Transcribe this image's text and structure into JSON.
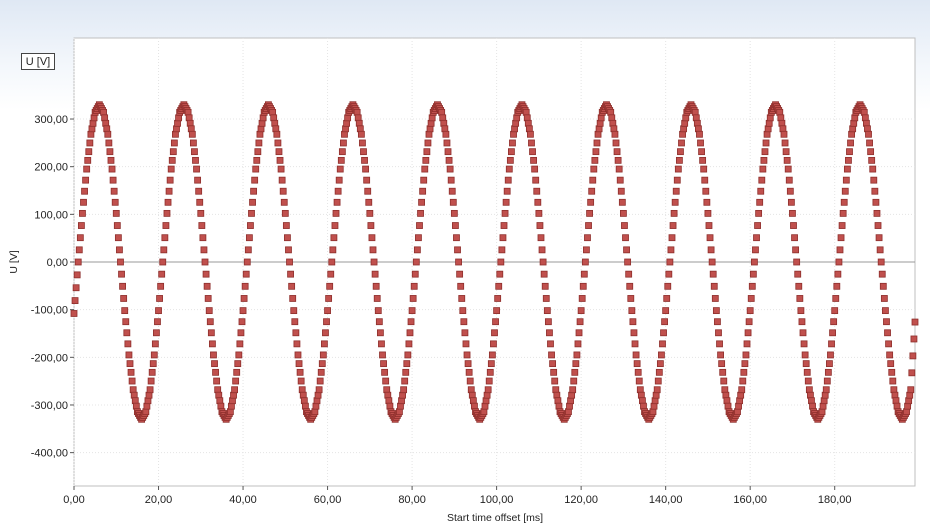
{
  "chart_data": {
    "type": "scatter",
    "xlabel": "Start time offset [ms]",
    "ylabel": "U [V]",
    "legend_label": "U [V]",
    "xlim": [
      0,
      199
    ],
    "ylim": [
      -470,
      470
    ],
    "x_ticks": [
      "0,00",
      "20,00",
      "40,00",
      "60,00",
      "80,00",
      "100,00",
      "120,00",
      "140,00",
      "160,00",
      "180,00"
    ],
    "y_ticks": [
      "-400,00",
      "-300,00",
      "-200,00",
      "-100,00",
      "0,00",
      "100,00",
      "200,00",
      "300,00"
    ],
    "grid": true,
    "marker_color": "#c0504d",
    "marker_edge_color": "#8e2f2c",
    "series": [
      {
        "marker": "square",
        "points": [
          [
            0.0,
            -108
          ],
          [
            1.0,
            0
          ],
          [
            2.0,
            102
          ],
          [
            3.0,
            195
          ],
          [
            4.0,
            268
          ],
          [
            5.0,
            314
          ],
          [
            6.0,
            330
          ],
          [
            7.0,
            314
          ],
          [
            8.0,
            268
          ],
          [
            9.0,
            195
          ],
          [
            10.0,
            102
          ],
          [
            11.0,
            0
          ],
          [
            12.0,
            -102
          ],
          [
            13.0,
            -195
          ],
          [
            14.0,
            -268
          ],
          [
            15.0,
            -314
          ],
          [
            16.0,
            -330
          ],
          [
            17.0,
            -314
          ],
          [
            18.0,
            -268
          ],
          [
            19.0,
            -195
          ],
          [
            20.0,
            -102
          ],
          [
            21.0,
            0
          ],
          [
            22.0,
            102
          ],
          [
            23.0,
            195
          ],
          [
            24.0,
            268
          ],
          [
            25.0,
            314
          ],
          [
            26.0,
            330
          ],
          [
            27.0,
            314
          ],
          [
            28.0,
            268
          ],
          [
            29.0,
            195
          ],
          [
            30.0,
            102
          ],
          [
            31.0,
            0
          ],
          [
            32.0,
            -102
          ],
          [
            33.0,
            -195
          ],
          [
            34.0,
            -268
          ],
          [
            35.0,
            -314
          ],
          [
            36.0,
            -330
          ],
          [
            37.0,
            -314
          ],
          [
            38.0,
            -268
          ],
          [
            39.0,
            -195
          ],
          [
            40.0,
            -102
          ],
          [
            41.0,
            0
          ],
          [
            42.0,
            102
          ],
          [
            43.0,
            195
          ],
          [
            44.0,
            268
          ],
          [
            45.0,
            314
          ],
          [
            46.0,
            330
          ],
          [
            47.0,
            314
          ],
          [
            48.0,
            268
          ],
          [
            49.0,
            195
          ],
          [
            50.0,
            102
          ],
          [
            51.0,
            0
          ],
          [
            52.0,
            -102
          ],
          [
            53.0,
            -195
          ],
          [
            54.0,
            -268
          ],
          [
            55.0,
            -314
          ],
          [
            56.0,
            -330
          ],
          [
            57.0,
            -314
          ],
          [
            58.0,
            -268
          ],
          [
            59.0,
            -195
          ],
          [
            60.0,
            -102
          ],
          [
            61.0,
            0
          ],
          [
            62.0,
            102
          ],
          [
            63.0,
            195
          ],
          [
            64.0,
            268
          ],
          [
            65.0,
            314
          ],
          [
            66.0,
            330
          ],
          [
            67.0,
            314
          ],
          [
            68.0,
            268
          ],
          [
            69.0,
            195
          ],
          [
            70.0,
            102
          ],
          [
            71.0,
            0
          ],
          [
            72.0,
            -102
          ],
          [
            73.0,
            -195
          ],
          [
            74.0,
            -268
          ],
          [
            75.0,
            -314
          ],
          [
            76.0,
            -330
          ],
          [
            77.0,
            -314
          ],
          [
            78.0,
            -268
          ],
          [
            79.0,
            -195
          ],
          [
            80.0,
            -102
          ],
          [
            81.0,
            0
          ],
          [
            82.0,
            102
          ],
          [
            83.0,
            195
          ],
          [
            84.0,
            268
          ],
          [
            85.0,
            314
          ],
          [
            86.0,
            330
          ],
          [
            87.0,
            314
          ],
          [
            88.0,
            268
          ],
          [
            89.0,
            195
          ],
          [
            90.0,
            102
          ],
          [
            91.0,
            0
          ],
          [
            92.0,
            -102
          ],
          [
            93.0,
            -195
          ],
          [
            94.0,
            -268
          ],
          [
            95.0,
            -314
          ],
          [
            96.0,
            -330
          ],
          [
            97.0,
            -314
          ],
          [
            98.0,
            -268
          ],
          [
            99.0,
            -195
          ],
          [
            100.0,
            -102
          ],
          [
            101.0,
            0
          ],
          [
            102.0,
            102
          ],
          [
            103.0,
            195
          ],
          [
            104.0,
            268
          ],
          [
            105.0,
            314
          ],
          [
            106.0,
            330
          ],
          [
            107.0,
            314
          ],
          [
            108.0,
            268
          ],
          [
            109.0,
            195
          ],
          [
            110.0,
            102
          ],
          [
            111.0,
            0
          ],
          [
            112.0,
            -102
          ],
          [
            113.0,
            -195
          ],
          [
            114.0,
            -268
          ],
          [
            115.0,
            -314
          ],
          [
            116.0,
            -330
          ],
          [
            117.0,
            -314
          ],
          [
            118.0,
            -268
          ],
          [
            119.0,
            -195
          ],
          [
            120.0,
            -102
          ],
          [
            121.0,
            0
          ],
          [
            122.0,
            102
          ],
          [
            123.0,
            195
          ],
          [
            124.0,
            268
          ],
          [
            125.0,
            314
          ],
          [
            126.0,
            330
          ],
          [
            127.0,
            314
          ],
          [
            128.0,
            268
          ],
          [
            129.0,
            195
          ],
          [
            130.0,
            102
          ],
          [
            131.0,
            0
          ],
          [
            132.0,
            -102
          ],
          [
            133.0,
            -195
          ],
          [
            134.0,
            -268
          ],
          [
            135.0,
            -314
          ],
          [
            136.0,
            -330
          ],
          [
            137.0,
            -314
          ],
          [
            138.0,
            -268
          ],
          [
            139.0,
            -195
          ],
          [
            140.0,
            -102
          ],
          [
            141.0,
            0
          ],
          [
            142.0,
            102
          ],
          [
            143.0,
            195
          ],
          [
            144.0,
            268
          ],
          [
            145.0,
            314
          ],
          [
            146.0,
            330
          ],
          [
            147.0,
            314
          ],
          [
            148.0,
            268
          ],
          [
            149.0,
            195
          ],
          [
            150.0,
            102
          ],
          [
            151.0,
            0
          ],
          [
            152.0,
            -102
          ],
          [
            153.0,
            -195
          ],
          [
            154.0,
            -268
          ],
          [
            155.0,
            -314
          ],
          [
            156.0,
            -330
          ],
          [
            157.0,
            -314
          ],
          [
            158.0,
            -268
          ],
          [
            159.0,
            -195
          ],
          [
            160.0,
            -102
          ],
          [
            161.0,
            0
          ],
          [
            162.0,
            102
          ],
          [
            163.0,
            195
          ],
          [
            164.0,
            268
          ],
          [
            165.0,
            314
          ],
          [
            166.0,
            330
          ],
          [
            167.0,
            314
          ],
          [
            168.0,
            268
          ],
          [
            169.0,
            195
          ],
          [
            170.0,
            102
          ],
          [
            171.0,
            0
          ],
          [
            172.0,
            -102
          ],
          [
            173.0,
            -195
          ],
          [
            174.0,
            -268
          ],
          [
            175.0,
            -314
          ],
          [
            176.0,
            -330
          ],
          [
            177.0,
            -314
          ],
          [
            178.0,
            -268
          ],
          [
            179.0,
            -195
          ],
          [
            180.0,
            -102
          ],
          [
            181.0,
            0
          ],
          [
            182.0,
            102
          ],
          [
            183.0,
            195
          ],
          [
            184.0,
            268
          ],
          [
            185.0,
            314
          ],
          [
            186.0,
            330
          ],
          [
            187.0,
            314
          ],
          [
            188.0,
            268
          ],
          [
            189.0,
            195
          ],
          [
            190.0,
            102
          ],
          [
            191.0,
            0
          ],
          [
            192.0,
            -102
          ],
          [
            193.0,
            -195
          ],
          [
            194.0,
            -268
          ],
          [
            195.0,
            -314
          ],
          [
            196.0,
            -330
          ],
          [
            197.0,
            -314
          ],
          [
            198.0,
            -268
          ],
          [
            199.0,
            -126
          ]
        ]
      }
    ]
  }
}
